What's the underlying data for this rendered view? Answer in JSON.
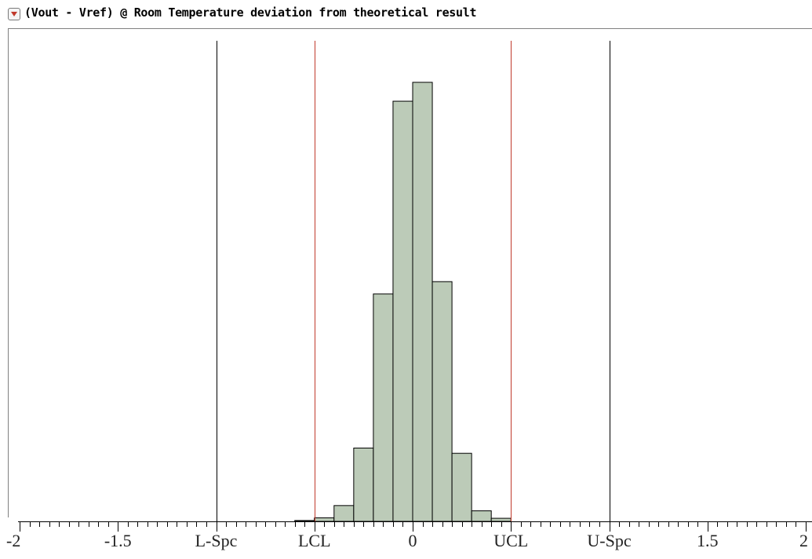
{
  "header": {
    "title": "(Vout - Vref) @ Room Temperature deviation from theoretical result"
  },
  "chart_data": {
    "type": "bar",
    "title": "(Vout - Vref) @ Room Temperature deviation from theoretical result",
    "xlabel": "",
    "ylabel": "",
    "xlim": [
      -2,
      2
    ],
    "bin_width": 0.1,
    "bins": [
      {
        "x0": -0.6,
        "x1": -0.5,
        "value": 0.2
      },
      {
        "x0": -0.5,
        "x1": -0.4,
        "value": 0.8
      },
      {
        "x0": -0.4,
        "x1": -0.3,
        "value": 3.6
      },
      {
        "x0": -0.3,
        "x1": -0.2,
        "value": 16.7
      },
      {
        "x0": -0.2,
        "x1": -0.1,
        "value": 51.8
      },
      {
        "x0": -0.1,
        "x1": 0.0,
        "value": 95.7
      },
      {
        "x0": 0.0,
        "x1": 0.1,
        "value": 100
      },
      {
        "x0": 0.1,
        "x1": 0.2,
        "value": 54.6
      },
      {
        "x0": 0.2,
        "x1": 0.3,
        "value": 15.5
      },
      {
        "x0": 0.3,
        "x1": 0.4,
        "value": 2.4
      },
      {
        "x0": 0.4,
        "x1": 0.5,
        "value": 0.7
      }
    ],
    "bar_color": "#bccbb8",
    "reference_lines": [
      {
        "label": "L-Spc",
        "x": -1.0,
        "color": "#000000"
      },
      {
        "label": "LCL",
        "x": -0.5,
        "color": "#c0392b"
      },
      {
        "label": "UCL",
        "x": 0.5,
        "color": "#c0392b"
      },
      {
        "label": "U-Spc",
        "x": 1.0,
        "color": "#000000"
      }
    ],
    "tick_labels": [
      {
        "x": -2,
        "label": "-2"
      },
      {
        "x": -1.5,
        "label": "-1.5"
      },
      {
        "x": -1,
        "label": "L-Spc"
      },
      {
        "x": -0.5,
        "label": "LCL"
      },
      {
        "x": 0,
        "label": "0"
      },
      {
        "x": 0.5,
        "label": "UCL"
      },
      {
        "x": 1,
        "label": "U-Spc"
      },
      {
        "x": 1.5,
        "label": "1.5"
      },
      {
        "x": 2,
        "label": "2"
      }
    ],
    "minor_tick_step": 0.05,
    "grid": false
  }
}
